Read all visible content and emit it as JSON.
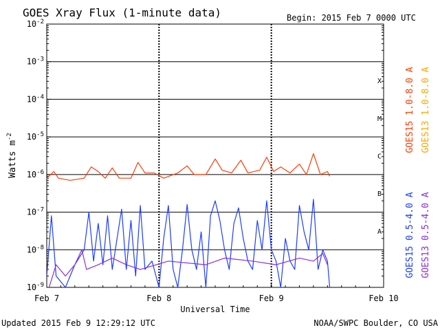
{
  "chart_data": {
    "type": "line",
    "title": "GOES Xray Flux (1-minute data)",
    "begin_label": "Begin:  2015 Feb 7 0000 UTC",
    "xlabel": "Universal Time",
    "ylabel": "Watts m",
    "ylabel_exponent": "-2",
    "y_scale": "log",
    "ylim": [
      1e-09,
      0.01
    ],
    "y_ticks": [
      {
        "value": 0.01,
        "mantissa": "10",
        "exponent": "-2"
      },
      {
        "value": 0.001,
        "mantissa": "10",
        "exponent": "-3"
      },
      {
        "value": 0.0001,
        "mantissa": "10",
        "exponent": "-4"
      },
      {
        "value": 1e-05,
        "mantissa": "10",
        "exponent": "-5"
      },
      {
        "value": 1e-06,
        "mantissa": "10",
        "exponent": "-6"
      },
      {
        "value": 1e-07,
        "mantissa": "10",
        "exponent": "-7"
      },
      {
        "value": 1e-08,
        "mantissa": "10",
        "exponent": "-8"
      },
      {
        "value": 1e-09,
        "mantissa": "10",
        "exponent": "-9"
      }
    ],
    "x_range_days": [
      "2015-02-07",
      "2015-02-10"
    ],
    "x_ticks": [
      {
        "date": "2015-02-07",
        "label": "Feb 7"
      },
      {
        "date": "2015-02-08",
        "label": "Feb 8"
      },
      {
        "date": "2015-02-09",
        "label": "Feb 9"
      },
      {
        "date": "2015-02-10",
        "label": "Feb 10"
      }
    ],
    "flare_classes": [
      {
        "label": "A",
        "value": 1e-08
      },
      {
        "label": "B",
        "value": 1e-07
      },
      {
        "label": "C",
        "value": 1e-06
      },
      {
        "label": "M",
        "value": 1e-05
      },
      {
        "label": "X",
        "value": 0.0001
      }
    ],
    "grid": "horizontal at decades",
    "series": [
      {
        "name": "GOES15 1.0-8.0 A",
        "color": "#ff3a00",
        "points": [
          [
            "2015-02-07 00:00",
            8e-07
          ],
          [
            "2015-02-07 01:30",
            1.2e-06
          ],
          [
            "2015-02-07 02:30",
            8e-07
          ],
          [
            "2015-02-07 05:00",
            7e-07
          ],
          [
            "2015-02-07 08:00",
            8e-07
          ],
          [
            "2015-02-07 09:30",
            1.6e-06
          ],
          [
            "2015-02-07 11:00",
            1.2e-06
          ],
          [
            "2015-02-07 12:30",
            8e-07
          ],
          [
            "2015-02-07 14:00",
            1.5e-06
          ],
          [
            "2015-02-07 15:30",
            8e-07
          ],
          [
            "2015-02-07 18:00",
            8e-07
          ],
          [
            "2015-02-07 19:30",
            2.1e-06
          ],
          [
            "2015-02-07 21:00",
            1.1e-06
          ],
          [
            "2015-02-07 23:00",
            1.1e-06
          ],
          [
            "2015-02-08 01:00",
            8e-07
          ],
          [
            "2015-02-08 04:00",
            1.1e-06
          ],
          [
            "2015-02-08 06:00",
            1.7e-06
          ],
          [
            "2015-02-08 07:30",
            1e-06
          ],
          [
            "2015-02-08 10:00",
            1e-06
          ],
          [
            "2015-02-08 12:00",
            2.6e-06
          ],
          [
            "2015-02-08 13:30",
            1.3e-06
          ],
          [
            "2015-02-08 15:30",
            1.1e-06
          ],
          [
            "2015-02-08 17:30",
            2.4e-06
          ],
          [
            "2015-02-08 19:00",
            1.1e-06
          ],
          [
            "2015-02-08 21:30",
            1.3e-06
          ],
          [
            "2015-02-08 23:00",
            2.9e-06
          ],
          [
            "2015-02-09 00:30",
            1.2e-06
          ],
          [
            "2015-02-09 02:00",
            1.6e-06
          ],
          [
            "2015-02-09 04:00",
            1.1e-06
          ],
          [
            "2015-02-09 06:00",
            1.9e-06
          ],
          [
            "2015-02-09 07:30",
            1e-06
          ],
          [
            "2015-02-09 09:00",
            3.6e-06
          ],
          [
            "2015-02-09 10:30",
            1e-06
          ],
          [
            "2015-02-09 12:00",
            1.2e-06
          ],
          [
            "2015-02-09 12:29",
            9e-07
          ]
        ]
      },
      {
        "name": "GOES13 1.0-8.0 A",
        "color": "#ffa500",
        "points": []
      },
      {
        "name": "GOES15 0.5-4.0 A",
        "color": "#1a3cff",
        "points": [
          [
            "2015-02-07 00:00",
            2e-09
          ],
          [
            "2015-02-07 01:00",
            8e-08
          ],
          [
            "2015-02-07 02:00",
            2e-09
          ],
          [
            "2015-02-07 04:00",
            1e-09
          ],
          [
            "2015-02-07 06:00",
            4e-09
          ],
          [
            "2015-02-07 08:00",
            1e-08
          ],
          [
            "2015-02-07 09:00",
            1e-07
          ],
          [
            "2015-02-07 10:00",
            5e-09
          ],
          [
            "2015-02-07 11:00",
            5e-08
          ],
          [
            "2015-02-07 12:00",
            4e-09
          ],
          [
            "2015-02-07 13:00",
            8e-08
          ],
          [
            "2015-02-07 14:00",
            3e-09
          ],
          [
            "2015-02-07 16:00",
            1.2e-07
          ],
          [
            "2015-02-07 17:00",
            3e-09
          ],
          [
            "2015-02-07 18:00",
            6e-08
          ],
          [
            "2015-02-07 19:00",
            2e-09
          ],
          [
            "2015-02-07 20:00",
            1.5e-07
          ],
          [
            "2015-02-07 21:00",
            3e-09
          ],
          [
            "2015-02-07 22:30",
            5e-09
          ],
          [
            "2015-02-08 00:00",
            1e-09
          ],
          [
            "2015-02-08 01:00",
            2e-08
          ],
          [
            "2015-02-08 02:00",
            1.5e-07
          ],
          [
            "2015-02-08 03:00",
            3e-09
          ],
          [
            "2015-02-08 04:00",
            1e-09
          ],
          [
            "2015-02-08 05:00",
            1e-08
          ],
          [
            "2015-02-08 06:00",
            1.6e-07
          ],
          [
            "2015-02-08 07:00",
            1e-08
          ],
          [
            "2015-02-08 08:00",
            3e-09
          ],
          [
            "2015-02-08 09:00",
            3e-08
          ],
          [
            "2015-02-08 10:00",
            1e-09
          ],
          [
            "2015-02-08 11:00",
            8e-08
          ],
          [
            "2015-02-08 12:00",
            2e-07
          ],
          [
            "2015-02-08 13:00",
            6e-08
          ],
          [
            "2015-02-08 14:00",
            1e-08
          ],
          [
            "2015-02-08 15:00",
            3e-09
          ],
          [
            "2015-02-08 16:00",
            5e-08
          ],
          [
            "2015-02-08 17:00",
            1.3e-07
          ],
          [
            "2015-02-08 18:00",
            2e-08
          ],
          [
            "2015-02-08 19:00",
            5e-09
          ],
          [
            "2015-02-08 20:00",
            3e-09
          ],
          [
            "2015-02-08 21:00",
            6e-08
          ],
          [
            "2015-02-08 22:00",
            1e-08
          ],
          [
            "2015-02-08 23:00",
            2e-07
          ],
          [
            "2015-02-09 00:00",
            1e-08
          ],
          [
            "2015-02-09 01:00",
            5e-09
          ],
          [
            "2015-02-09 02:00",
            1e-09
          ],
          [
            "2015-02-09 03:00",
            2e-08
          ],
          [
            "2015-02-09 04:00",
            5e-09
          ],
          [
            "2015-02-09 05:00",
            3e-09
          ],
          [
            "2015-02-09 06:00",
            1.5e-07
          ],
          [
            "2015-02-09 07:00",
            3e-08
          ],
          [
            "2015-02-09 08:00",
            1e-08
          ],
          [
            "2015-02-09 09:00",
            2.2e-07
          ],
          [
            "2015-02-09 10:00",
            3e-09
          ],
          [
            "2015-02-09 11:00",
            1e-08
          ],
          [
            "2015-02-09 12:00",
            5e-09
          ],
          [
            "2015-02-09 12:29",
            1e-09
          ]
        ]
      },
      {
        "name": "GOES13 0.5-4.0 A",
        "color": "#8a2be2",
        "points": [
          [
            "2015-02-07 00:30",
            1e-09
          ],
          [
            "2015-02-07 02:00",
            4e-09
          ],
          [
            "2015-02-07 04:00",
            2e-09
          ],
          [
            "2015-02-07 06:00",
            4e-09
          ],
          [
            "2015-02-07 07:30",
            1e-08
          ],
          [
            "2015-02-07 08:30",
            3e-09
          ],
          [
            "2015-02-07 11:00",
            4e-09
          ],
          [
            "2015-02-07 14:00",
            6e-09
          ],
          [
            "2015-02-07 17:00",
            4e-09
          ],
          [
            "2015-02-07 20:00",
            3e-09
          ],
          [
            "2015-02-08 02:00",
            5e-09
          ],
          [
            "2015-02-08 10:00",
            4e-09
          ],
          [
            "2015-02-08 14:00",
            6e-09
          ],
          [
            "2015-02-08 20:00",
            5e-09
          ],
          [
            "2015-02-09 01:00",
            4e-09
          ],
          [
            "2015-02-09 06:00",
            6e-09
          ],
          [
            "2015-02-09 09:00",
            5e-09
          ],
          [
            "2015-02-09 11:00",
            8e-09
          ],
          [
            "2015-02-09 12:00",
            4e-09
          ]
        ]
      }
    ]
  },
  "footer": {
    "updated": "Updated 2015 Feb  9 12:29:12 UTC",
    "credit": "NOAA/SWPC Boulder, CO USA"
  }
}
